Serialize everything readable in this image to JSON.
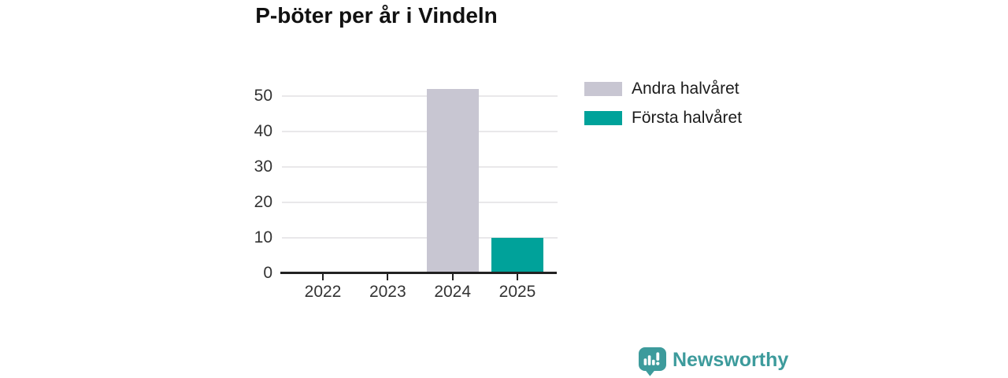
{
  "chart_data": {
    "type": "bar",
    "title": "P-böter per år i Vindeln",
    "categories": [
      "2022",
      "2023",
      "2024",
      "2025"
    ],
    "series": [
      {
        "name": "Andra halvåret",
        "color": "#c8c6d2",
        "values": [
          0,
          0,
          52,
          0
        ]
      },
      {
        "name": "Första halvåret",
        "color": "#00a29a",
        "values": [
          0,
          0,
          0,
          10
        ]
      }
    ],
    "stacked": true,
    "xlabel": "",
    "ylabel": "",
    "ylim": [
      0,
      55
    ],
    "yticks": [
      0,
      10,
      20,
      30,
      40,
      50
    ],
    "grid": true,
    "legend_position": "right",
    "axis_color": "#222222",
    "gridline_color": "#e9e8ea",
    "tick_label_color": "#333333"
  },
  "branding": {
    "name": "Newsworthy",
    "logo_icon": "bar-chart-speech-bubble-icon",
    "color": "#3d9b9c"
  }
}
